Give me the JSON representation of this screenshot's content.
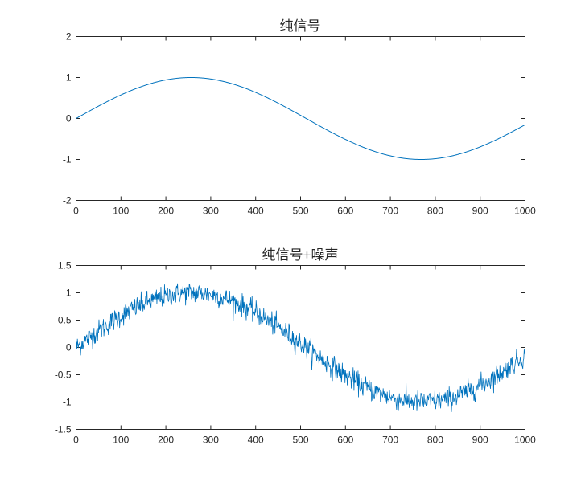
{
  "chart_data": [
    {
      "type": "line",
      "title": "纯信号",
      "xlabel": "",
      "ylabel": "",
      "xlim": [
        0,
        1000
      ],
      "ylim": [
        -2,
        2
      ],
      "xticks": [
        0,
        100,
        200,
        300,
        400,
        500,
        600,
        700,
        800,
        900,
        1000
      ],
      "yticks": [
        -2,
        -1,
        0,
        1,
        2
      ],
      "ytick_labels": [
        "-2",
        "-1",
        "0",
        "1",
        "2"
      ],
      "grid": false,
      "series": [
        {
          "name": "pure signal",
          "color": "#0072BD",
          "x": [
            0,
            50,
            100,
            150,
            200,
            256,
            300,
            350,
            400,
            450,
            500,
            550,
            600,
            650,
            700,
            770,
            800,
            850,
            900,
            950,
            1000
          ],
          "values": [
            0,
            0.3,
            0.57,
            0.8,
            0.95,
            1.0,
            0.98,
            0.89,
            0.71,
            0.46,
            0.17,
            -0.14,
            -0.44,
            -0.7,
            -0.89,
            -1.0,
            -0.98,
            -0.86,
            -0.67,
            -0.42,
            -0.16
          ]
        }
      ]
    },
    {
      "type": "line",
      "title": "纯信号+噪声",
      "xlabel": "",
      "ylabel": "",
      "xlim": [
        0,
        1000
      ],
      "ylim": [
        -1.5,
        1.5
      ],
      "xticks": [
        0,
        100,
        200,
        300,
        400,
        500,
        600,
        700,
        800,
        900,
        1000
      ],
      "yticks": [
        -1.5,
        -1,
        -0.5,
        0,
        0.5,
        1,
        1.5
      ],
      "ytick_labels": [
        "-1.5",
        "-1",
        "-0.5",
        "0",
        "0.5",
        "1",
        "1.5"
      ],
      "grid": false,
      "series": [
        {
          "name": "signal + noise",
          "color": "#0072BD",
          "noise_amplitude_approx": 0.1,
          "x": [
            0,
            50,
            100,
            150,
            200,
            256,
            300,
            350,
            400,
            450,
            500,
            550,
            600,
            650,
            700,
            770,
            800,
            850,
            900,
            950,
            1000
          ],
          "values": [
            0,
            0.3,
            0.57,
            0.8,
            0.95,
            1.0,
            0.98,
            0.89,
            0.71,
            0.46,
            0.17,
            -0.14,
            -0.44,
            -0.7,
            -0.89,
            -1.0,
            -0.98,
            -0.86,
            -0.67,
            -0.42,
            -0.1
          ]
        }
      ]
    }
  ],
  "plots": [
    {
      "title": "纯信号",
      "xtick_labels": [
        "0",
        "100",
        "200",
        "300",
        "400",
        "500",
        "600",
        "700",
        "800",
        "900",
        "1000"
      ],
      "ytick_labels": [
        "2",
        "1",
        "0",
        "-1",
        "-2"
      ]
    },
    {
      "title": "纯信号+噪声",
      "xtick_labels": [
        "0",
        "100",
        "200",
        "300",
        "400",
        "500",
        "600",
        "700",
        "800",
        "900",
        "1000"
      ],
      "ytick_labels": [
        "1.5",
        "1",
        "0.5",
        "0",
        "-0.5",
        "-1",
        "-1.5"
      ]
    }
  ],
  "colors": {
    "line": "#0072BD",
    "axes": "#262626",
    "text": "#262626"
  }
}
